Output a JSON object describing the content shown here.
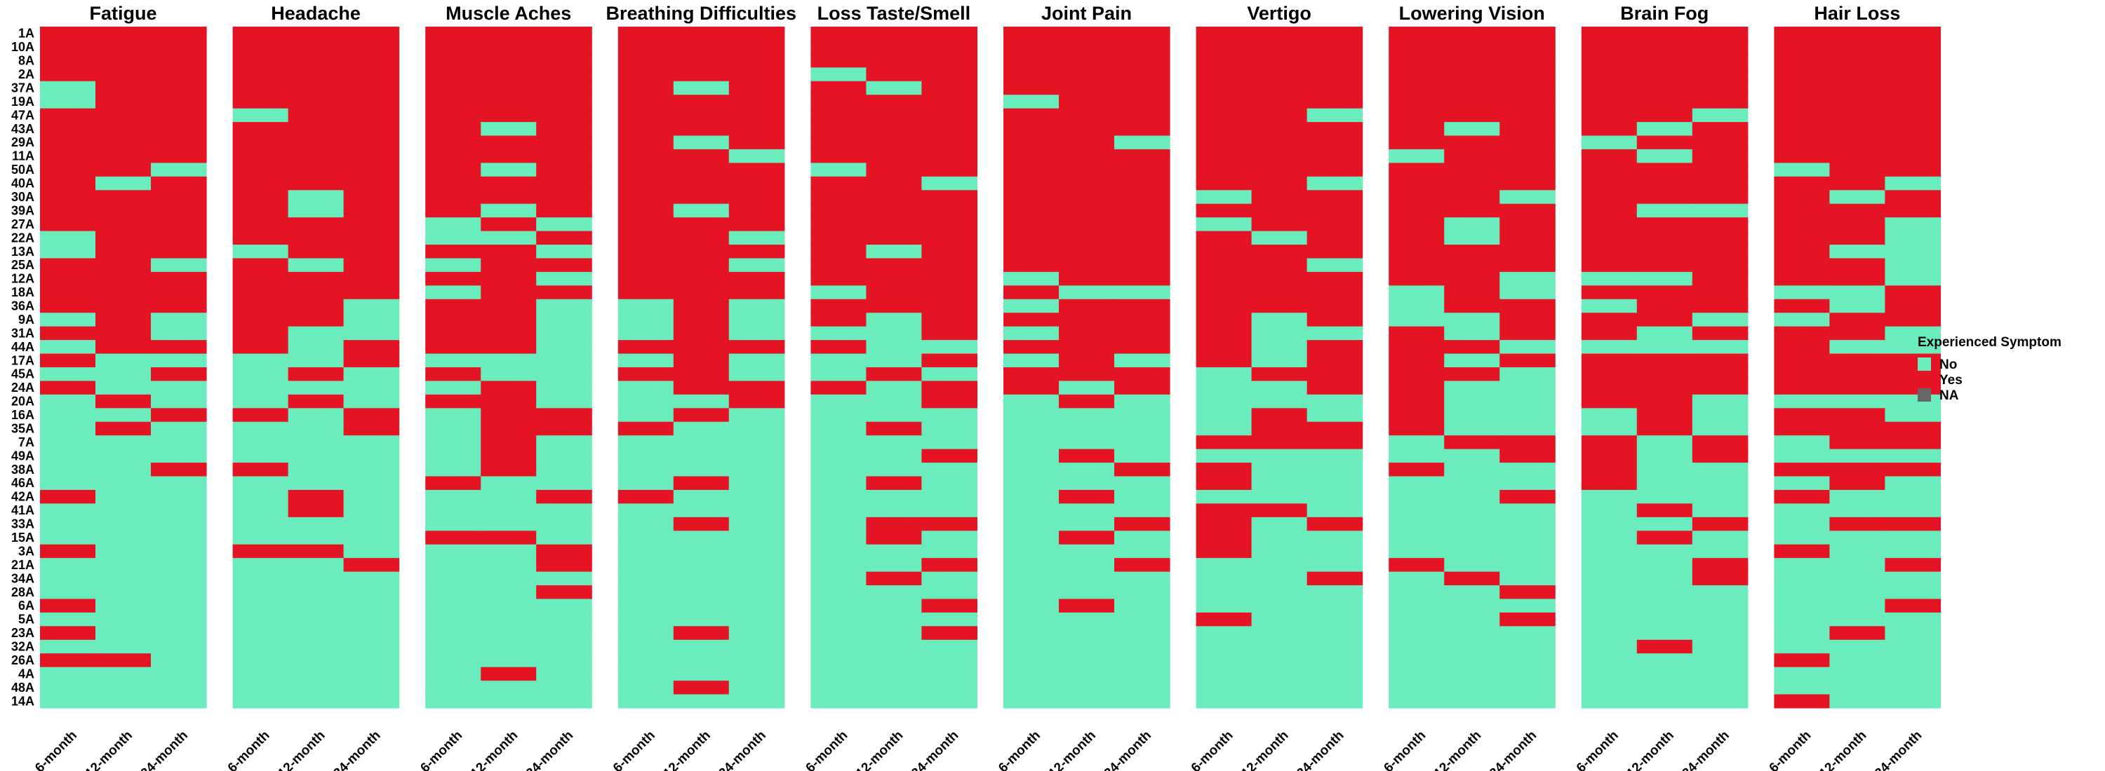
{
  "chart_data": {
    "type": "heatmap",
    "rows": [
      "1A",
      "10A",
      "8A",
      "2A",
      "37A",
      "19A",
      "47A",
      "43A",
      "29A",
      "11A",
      "50A",
      "40A",
      "30A",
      "39A",
      "27A",
      "22A",
      "13A",
      "25A",
      "12A",
      "18A",
      "36A",
      "9A",
      "31A",
      "44A",
      "17A",
      "45A",
      "24A",
      "20A",
      "16A",
      "35A",
      "7A",
      "49A",
      "38A",
      "46A",
      "42A",
      "41A",
      "33A",
      "15A",
      "3A",
      "21A",
      "34A",
      "28A",
      "6A",
      "5A",
      "23A",
      "32A",
      "26A",
      "4A",
      "48A",
      "14A"
    ],
    "columns": [
      "6-month",
      "12-month",
      "24-month"
    ],
    "legend": {
      "title": "Experienced Symptom",
      "entries": [
        {
          "key": "N",
          "label": "No",
          "color": "#6aecbd"
        },
        {
          "key": "Y",
          "label": "Yes",
          "color": "#e51424"
        },
        {
          "key": "X",
          "label": "NA",
          "color": "#666666"
        }
      ]
    },
    "panels": [
      {
        "title": "Fatigue",
        "cells": [
          "YYY",
          "YYY",
          "YYY",
          "YYY",
          "NYY",
          "NYY",
          "YYY",
          "YYY",
          "YYY",
          "YYY",
          "YYN",
          "YNY",
          "YYY",
          "YYY",
          "YYY",
          "NYY",
          "NYY",
          "YYN",
          "YYY",
          "YYY",
          "YYY",
          "NYN",
          "YYN",
          "NYY",
          "YNN",
          "NNY",
          "YNN",
          "NYN",
          "NNY",
          "NYN",
          "NNN",
          "NNN",
          "NNY",
          "NNN",
          "YNN",
          "NNN",
          "NNN",
          "NNN",
          "YNN",
          "NNN",
          "NNN",
          "NNN",
          "YNN",
          "NNN",
          "YNN",
          "NNN",
          "YYN",
          "NNN",
          "NNN",
          "NNN"
        ]
      },
      {
        "title": "Headache",
        "cells": [
          "YYY",
          "YYY",
          "YYY",
          "YYY",
          "YYY",
          "YYY",
          "NYY",
          "YYY",
          "YYY",
          "YYY",
          "YYY",
          "YYY",
          "YNY",
          "YNY",
          "YYY",
          "YYY",
          "NYY",
          "YNY",
          "YYY",
          "YYY",
          "YYN",
          "YYN",
          "YNN",
          "YNY",
          "NNY",
          "NYN",
          "NNN",
          "NYN",
          "YNY",
          "NNY",
          "NNN",
          "NNN",
          "YNN",
          "NNN",
          "NYN",
          "NYN",
          "NNN",
          "NNN",
          "YYN",
          "NNY",
          "NNN",
          "NNN",
          "NNN",
          "NNN",
          "NNN",
          "NNN",
          "NNN",
          "NNN",
          "NNN",
          "NNN"
        ]
      },
      {
        "title": "Muscle Aches",
        "cells": [
          "YYY",
          "YYY",
          "YYY",
          "YYY",
          "YYY",
          "YYY",
          "YYY",
          "YNY",
          "YYY",
          "YYY",
          "YNY",
          "YYY",
          "YYY",
          "YNY",
          "NYN",
          "NNY",
          "YYN",
          "NYY",
          "YYN",
          "NYY",
          "YYN",
          "YYN",
          "YYN",
          "YYN",
          "NNN",
          "YNN",
          "NYN",
          "YYN",
          "NYY",
          "NYY",
          "NYN",
          "NYN",
          "NYN",
          "YNN",
          "NNY",
          "NNN",
          "NNN",
          "YYN",
          "NNY",
          "NNY",
          "NNN",
          "NNY",
          "NNN",
          "NNN",
          "NNN",
          "NNN",
          "NNN",
          "NYN",
          "NNN",
          "NNN"
        ]
      },
      {
        "title": "Breathing Difficulties",
        "cells": [
          "YYY",
          "YYY",
          "YYY",
          "YYY",
          "YNY",
          "YYY",
          "YYY",
          "YYY",
          "YNY",
          "YYN",
          "YYY",
          "YYY",
          "YYY",
          "YNY",
          "YYY",
          "YYN",
          "YYY",
          "YYN",
          "YYY",
          "YYY",
          "NYN",
          "NYN",
          "NYN",
          "YYY",
          "NYN",
          "YYN",
          "NYY",
          "NNY",
          "NYN",
          "YNN",
          "NNN",
          "NNN",
          "NNN",
          "NYN",
          "YNN",
          "NNN",
          "NYN",
          "NNN",
          "NNN",
          "NNN",
          "NNN",
          "NNN",
          "NNN",
          "NNN",
          "NYN",
          "NNN",
          "NNN",
          "NNN",
          "NYN",
          "NNN"
        ]
      },
      {
        "title": "Loss Taste/Smell",
        "cells": [
          "YYY",
          "YYY",
          "YYY",
          "NYY",
          "YNY",
          "YYY",
          "YYY",
          "YYY",
          "YYY",
          "YYY",
          "NYY",
          "YYN",
          "YYY",
          "YYY",
          "YYY",
          "YYY",
          "YNY",
          "YYY",
          "YYY",
          "NYY",
          "YYY",
          "YNY",
          "NNY",
          "YNN",
          "NNY",
          "NYN",
          "YNY",
          "NNY",
          "NNN",
          "NYN",
          "NNN",
          "NNY",
          "NNN",
          "NYN",
          "NNN",
          "NNN",
          "NYY",
          "NYN",
          "NNN",
          "NNY",
          "NYN",
          "NNN",
          "NNY",
          "NNN",
          "NNY",
          "NNN",
          "NNN",
          "NNN",
          "NNN",
          "NNN"
        ]
      },
      {
        "title": "Joint Pain",
        "cells": [
          "YYY",
          "YYY",
          "YYY",
          "YYY",
          "YYY",
          "NYY",
          "YYY",
          "YYY",
          "YYN",
          "YYY",
          "YYY",
          "YYY",
          "YYY",
          "YYY",
          "YYY",
          "YYY",
          "YYY",
          "YYY",
          "NYY",
          "YNN",
          "NYY",
          "YYY",
          "NYY",
          "YYY",
          "NYN",
          "YYY",
          "YNY",
          "NYN",
          "NNN",
          "NNN",
          "NNN",
          "NYN",
          "NNY",
          "NNN",
          "NYN",
          "NNN",
          "NNY",
          "NYN",
          "NNN",
          "NNY",
          "NNN",
          "NNN",
          "NYN",
          "NNN",
          "NNN",
          "NNN",
          "NNN",
          "NNN",
          "NNN",
          "NNN"
        ]
      },
      {
        "title": "Vertigo",
        "cells": [
          "YYY",
          "YYY",
          "YYY",
          "YYY",
          "YYY",
          "YYY",
          "YYN",
          "YYY",
          "YYY",
          "YYY",
          "YYY",
          "YYN",
          "NYY",
          "YYY",
          "NYY",
          "YNY",
          "YYY",
          "YYN",
          "YYY",
          "YYY",
          "YYY",
          "YNY",
          "YNN",
          "YNY",
          "YNY",
          "NYY",
          "NNY",
          "NNN",
          "NYN",
          "NYY",
          "YYY",
          "NNN",
          "YNN",
          "YNN",
          "NNN",
          "YYN",
          "YNY",
          "YNN",
          "YNN",
          "NNN",
          "NNY",
          "NNN",
          "NNN",
          "YNN",
          "NNN",
          "NNN",
          "NNN",
          "NNN",
          "NNN",
          "NNN"
        ]
      },
      {
        "title": "Lowering Vision",
        "cells": [
          "YYY",
          "YYY",
          "YYY",
          "YYY",
          "YYY",
          "YYY",
          "YYY",
          "YNY",
          "YYY",
          "NYY",
          "YYY",
          "YYY",
          "YYN",
          "YYY",
          "YNY",
          "YNY",
          "YYY",
          "YYY",
          "YYN",
          "NYN",
          "NYY",
          "NNY",
          "YNY",
          "YYN",
          "YNY",
          "YYN",
          "YNN",
          "YNN",
          "YNN",
          "YNN",
          "NYY",
          "NNY",
          "YNN",
          "NNN",
          "NNY",
          "NNN",
          "NNN",
          "NNN",
          "NNN",
          "YNN",
          "NYN",
          "NNY",
          "NNN",
          "NNY",
          "NNN",
          "NNN",
          "NNN",
          "NNN",
          "NNN",
          "NNN"
        ]
      },
      {
        "title": "Brain Fog",
        "cells": [
          "YYY",
          "YYY",
          "YYY",
          "YYY",
          "YYY",
          "YYY",
          "YYN",
          "YNY",
          "NYY",
          "YNY",
          "YYY",
          "YYY",
          "YYY",
          "YNN",
          "YYY",
          "YYY",
          "YYY",
          "YYY",
          "NNY",
          "YYY",
          "NYY",
          "YYN",
          "YNY",
          "NNN",
          "YYY",
          "YYY",
          "YYY",
          "YYN",
          "NYN",
          "NYN",
          "YNY",
          "YNY",
          "YNN",
          "YNN",
          "NNN",
          "NYN",
          "NNY",
          "NYN",
          "NNN",
          "NNY",
          "NNY",
          "NNN",
          "NNN",
          "NNN",
          "NNN",
          "NYN",
          "NNN",
          "NNN",
          "NNN",
          "NNN"
        ]
      },
      {
        "title": "Hair Loss",
        "cells": [
          "YYY",
          "YYY",
          "YYY",
          "YYY",
          "YYY",
          "YYY",
          "YYY",
          "YYY",
          "YYY",
          "YYY",
          "NYY",
          "YYN",
          "YNY",
          "YYY",
          "YYN",
          "YYN",
          "YNN",
          "YYN",
          "YYN",
          "NNY",
          "YNY",
          "NYY",
          "YYN",
          "YNN",
          "YYY",
          "YYY",
          "YYY",
          "NNN",
          "YYN",
          "YYY",
          "NYY",
          "NNN",
          "YYY",
          "NYN",
          "YNN",
          "NNN",
          "NYY",
          "NNN",
          "YNN",
          "NNY",
          "NNN",
          "NNN",
          "NNY",
          "NNN",
          "NYN",
          "NNN",
          "YNN",
          "NNN",
          "NNN",
          "YNN"
        ]
      }
    ]
  }
}
